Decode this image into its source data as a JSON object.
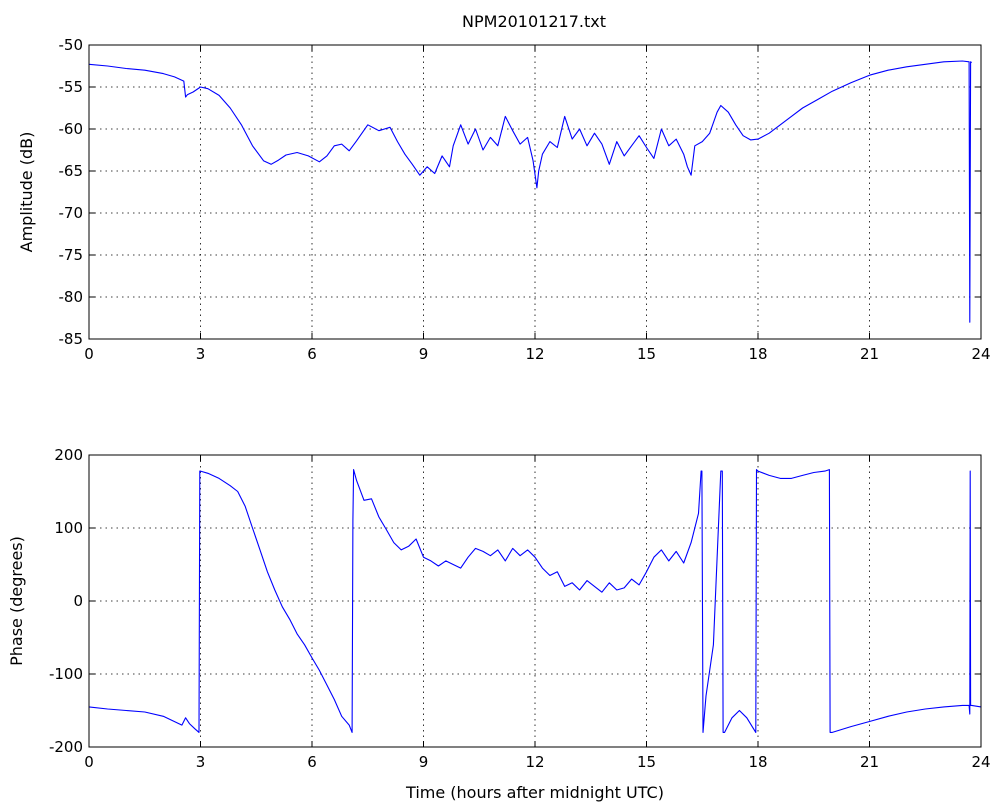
{
  "chart_data": [
    {
      "type": "line",
      "title": "NPM20101217.txt",
      "xlabel": "",
      "ylabel": "Amplitude (dB)",
      "xlim": [
        0,
        24
      ],
      "ylim": [
        -85,
        -50
      ],
      "xticks": [
        0,
        3,
        6,
        9,
        12,
        15,
        18,
        21,
        24
      ],
      "yticks": [
        -85,
        -80,
        -75,
        -70,
        -65,
        -60,
        -55,
        -50
      ],
      "grid": true,
      "series": [
        {
          "color": "#0000ff",
          "x": [
            0,
            0.5,
            1,
            1.5,
            2,
            2.3,
            2.55,
            2.6,
            2.65,
            2.8,
            3.0,
            3.2,
            3.5,
            3.8,
            4.1,
            4.4,
            4.7,
            4.9,
            5.1,
            5.3,
            5.6,
            5.9,
            6.2,
            6.4,
            6.6,
            6.8,
            7.0,
            7.2,
            7.5,
            7.8,
            8.1,
            8.3,
            8.5,
            8.7,
            8.9,
            9.1,
            9.3,
            9.5,
            9.7,
            9.8,
            10.0,
            10.2,
            10.4,
            10.6,
            10.8,
            11.0,
            11.2,
            11.4,
            11.6,
            11.8,
            11.95,
            12.05,
            12.1,
            12.2,
            12.4,
            12.6,
            12.8,
            13.0,
            13.2,
            13.4,
            13.6,
            13.8,
            14.0,
            14.2,
            14.4,
            14.6,
            14.8,
            15.0,
            15.2,
            15.4,
            15.6,
            15.8,
            16.0,
            16.1,
            16.2,
            16.3,
            16.5,
            16.7,
            16.9,
            17.0,
            17.2,
            17.4,
            17.6,
            17.8,
            18.0,
            18.3,
            18.6,
            18.9,
            19.2,
            19.6,
            20.0,
            20.5,
            21.0,
            21.5,
            22.0,
            22.5,
            23.0,
            23.5,
            23.68,
            23.7,
            23.72,
            23.75
          ],
          "y": [
            -52.3,
            -52.5,
            -52.8,
            -53.0,
            -53.4,
            -53.8,
            -54.3,
            -56.2,
            -55.9,
            -55.6,
            -55.0,
            -55.2,
            -56.0,
            -57.5,
            -59.5,
            -62.0,
            -63.8,
            -64.2,
            -63.7,
            -63.1,
            -62.8,
            -63.2,
            -63.9,
            -63.2,
            -62.0,
            -61.8,
            -62.6,
            -61.4,
            -59.5,
            -60.2,
            -59.8,
            -61.5,
            -63.0,
            -64.2,
            -65.5,
            -64.5,
            -65.3,
            -63.2,
            -64.5,
            -62.0,
            -59.5,
            -61.8,
            -60.0,
            -62.5,
            -61.0,
            -62.0,
            -58.5,
            -60.2,
            -61.8,
            -61.0,
            -63.8,
            -67.0,
            -65.0,
            -63.0,
            -61.5,
            -62.2,
            -58.5,
            -61.2,
            -60.0,
            -62.0,
            -60.5,
            -61.8,
            -64.2,
            -61.5,
            -63.2,
            -62.0,
            -60.8,
            -62.2,
            -63.5,
            -60.0,
            -62.0,
            -61.2,
            -63.0,
            -64.5,
            -65.5,
            -62.0,
            -61.5,
            -60.5,
            -58.0,
            -57.2,
            -58.0,
            -59.5,
            -60.8,
            -61.3,
            -61.2,
            -60.5,
            -59.5,
            -58.5,
            -57.5,
            -56.5,
            -55.5,
            -54.5,
            -53.6,
            -53.0,
            -52.6,
            -52.3,
            -52.0,
            -51.9,
            -52.0,
            -83.0,
            -52.0,
            -52.1
          ]
        }
      ]
    },
    {
      "type": "line",
      "title": "",
      "xlabel": "Time (hours after midnight UTC)",
      "ylabel": "Phase (degrees)",
      "xlim": [
        0,
        24
      ],
      "ylim": [
        -200,
        200
      ],
      "xticks": [
        0,
        3,
        6,
        9,
        12,
        15,
        18,
        21,
        24
      ],
      "yticks": [
        -200,
        -100,
        0,
        100,
        200
      ],
      "grid": true,
      "series": [
        {
          "color": "#0000ff",
          "x": [
            0,
            0.5,
            1.0,
            1.5,
            2.0,
            2.5,
            2.6,
            2.7,
            2.85,
            2.96,
            2.98,
            3.0,
            3.2,
            3.5,
            3.8,
            4.0,
            4.2,
            4.4,
            4.6,
            4.8,
            5.0,
            5.2,
            5.4,
            5.6,
            5.8,
            6.0,
            6.2,
            6.4,
            6.6,
            6.8,
            7.0,
            7.08,
            7.1,
            7.12,
            7.2,
            7.4,
            7.6,
            7.8,
            8.0,
            8.2,
            8.4,
            8.6,
            8.8,
            9.0,
            9.2,
            9.4,
            9.6,
            9.8,
            10.0,
            10.2,
            10.4,
            10.6,
            10.8,
            11.0,
            11.2,
            11.4,
            11.6,
            11.8,
            12.0,
            12.2,
            12.4,
            12.6,
            12.8,
            13.0,
            13.2,
            13.4,
            13.6,
            13.8,
            14.0,
            14.2,
            14.4,
            14.6,
            14.8,
            15.0,
            15.2,
            15.4,
            15.6,
            15.8,
            16.0,
            16.2,
            16.4,
            16.47,
            16.49,
            16.52,
            16.6,
            16.8,
            17.0,
            17.04,
            17.06,
            17.1,
            17.3,
            17.5,
            17.7,
            17.94,
            17.96,
            18.0,
            18.3,
            18.6,
            18.9,
            19.2,
            19.5,
            19.8,
            19.92,
            19.94,
            20.0,
            20.5,
            21.0,
            21.5,
            22.0,
            22.5,
            23.0,
            23.5,
            23.68,
            23.7,
            23.71,
            23.72,
            23.75,
            24.0
          ],
          "y": [
            -145,
            -148,
            -150,
            -152,
            -158,
            -170,
            -160,
            -168,
            -175,
            -180,
            178,
            178,
            175,
            168,
            158,
            150,
            130,
            100,
            70,
            40,
            15,
            -8,
            -25,
            -45,
            -60,
            -78,
            -95,
            -115,
            -135,
            -158,
            -170,
            -180,
            110,
            180,
            165,
            138,
            140,
            115,
            98,
            80,
            70,
            75,
            85,
            60,
            55,
            48,
            55,
            50,
            45,
            60,
            72,
            68,
            62,
            70,
            55,
            72,
            62,
            70,
            60,
            45,
            35,
            40,
            20,
            25,
            15,
            28,
            20,
            12,
            25,
            15,
            18,
            30,
            22,
            40,
            60,
            70,
            55,
            68,
            52,
            80,
            120,
            178,
            178,
            -180,
            -130,
            -60,
            178,
            178,
            -180,
            -180,
            -160,
            -150,
            -160,
            -180,
            180,
            178,
            172,
            168,
            168,
            172,
            176,
            178,
            180,
            -180,
            -180,
            -172,
            -165,
            -158,
            -152,
            -148,
            -145,
            -143,
            -143,
            -155,
            178,
            -143,
            -143,
            -145
          ]
        }
      ]
    }
  ]
}
